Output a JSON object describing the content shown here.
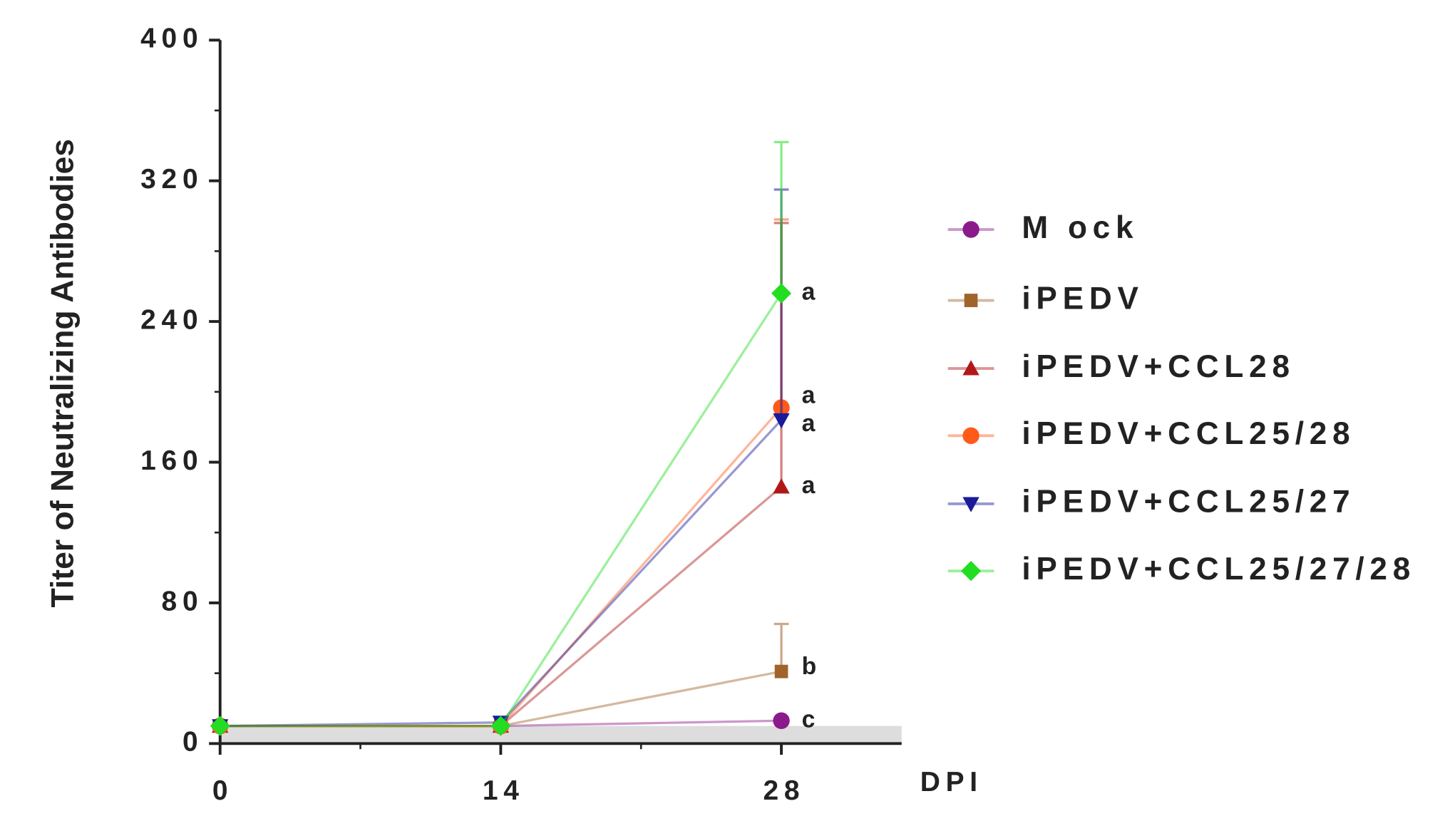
{
  "chart_data": {
    "type": "line",
    "y_label": "Titer of Neutralizing Antibodies",
    "x_label": "DPI",
    "x": [
      0,
      14,
      28
    ],
    "xlim": [
      0,
      34
    ],
    "xticks": [
      0,
      14,
      28
    ],
    "xminorticks": [
      7,
      21
    ],
    "ylim": [
      0,
      400
    ],
    "yticks": [
      0,
      80,
      160,
      240,
      320,
      400
    ],
    "yminorticks": [
      40,
      120,
      200,
      280,
      360
    ],
    "shaded_band": [
      0,
      10
    ],
    "series": [
      {
        "name": "M ock",
        "color": "#8b1a8b",
        "marker": "circle",
        "values": [
          10,
          10,
          13
        ],
        "errors": [
          null,
          null,
          2
        ],
        "annotation": "c"
      },
      {
        "name": "iPEDV",
        "color": "#a0632a",
        "marker": "square",
        "values": [
          10,
          10,
          41
        ],
        "errors": [
          null,
          null,
          27
        ],
        "annotation": "b"
      },
      {
        "name": "iPEDV+CCL28",
        "color": "#b01818",
        "marker": "triangle-up",
        "values": [
          10,
          10,
          146
        ],
        "errors": [
          null,
          null,
          150
        ],
        "annotation": "a"
      },
      {
        "name": "iPEDV+CCL25/28",
        "color": "#ff5a1a",
        "marker": "circle",
        "values": [
          10,
          10,
          191
        ],
        "errors": [
          null,
          null,
          107
        ],
        "annotation": "a"
      },
      {
        "name": "iPEDV+CCL25/27",
        "color": "#1a1a9a",
        "marker": "triangle-down",
        "values": [
          10,
          12,
          184
        ],
        "errors": [
          null,
          null,
          131
        ],
        "annotation": "a"
      },
      {
        "name": "iPEDV+CCL25/27/28",
        "color": "#22dd22",
        "marker": "diamond",
        "values": [
          10,
          10,
          256
        ],
        "errors": [
          null,
          null,
          86
        ],
        "annotation": "a"
      }
    ]
  }
}
